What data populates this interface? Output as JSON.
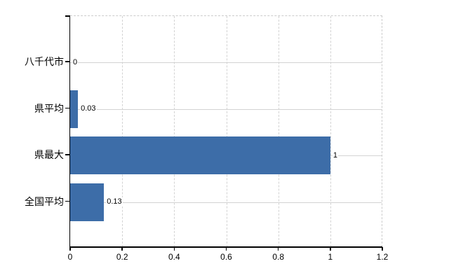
{
  "chart_data": {
    "type": "bar",
    "orientation": "horizontal",
    "title": "",
    "xlabel": "",
    "ylabel": "",
    "categories": [
      "八千代市",
      "県平均",
      "県最大",
      "全国平均"
    ],
    "values": [
      0,
      0.03,
      1,
      0.13
    ],
    "value_labels": [
      "0",
      "0.03",
      "1",
      "0.13"
    ],
    "x_ticks": [
      "0",
      "0.2",
      "0.4",
      "0.6",
      "0.8",
      "1",
      "1.2"
    ],
    "x_tick_values": [
      0,
      0.2,
      0.4,
      0.6,
      0.8,
      1,
      1.2
    ],
    "xlim": [
      0,
      1.2
    ],
    "grid": true,
    "legend": false,
    "colors": {
      "bar": "#3D6DA8",
      "grid": "#D3D3D3",
      "axis": "#000000",
      "text": "#000000",
      "background": "#FFFFFF"
    }
  }
}
